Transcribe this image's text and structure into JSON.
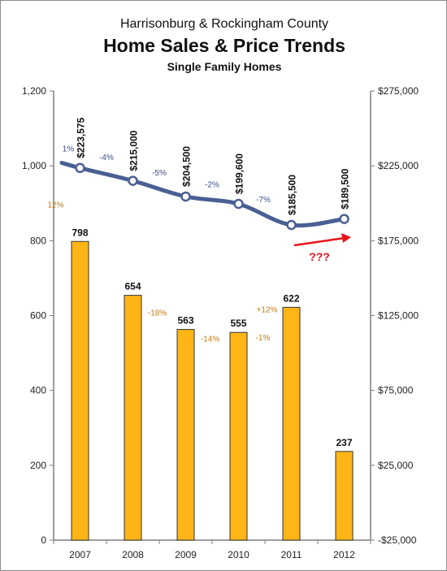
{
  "header": {
    "supertitle": "Harrisonburg & Rockingham County",
    "title": "Home Sales & Price Trends",
    "subtitle": "Single Family Homes"
  },
  "chart_data": {
    "type": "bar",
    "categories": [
      "2007",
      "2008",
      "2009",
      "2010",
      "2011",
      "2012"
    ],
    "series": [
      {
        "axis": "left",
        "type": "bar",
        "color": "#FFB515",
        "values": [
          798,
          654,
          563,
          555,
          622,
          237
        ],
        "value_labels": [
          "798",
          "654",
          "563",
          "555",
          "622",
          "237"
        ],
        "change_labels": [
          "12%",
          "-18%",
          "-14%",
          "-1%",
          "+12%"
        ],
        "change_color": "#C07A10"
      },
      {
        "axis": "right",
        "type": "line",
        "color": "#4A5F93",
        "values": [
          223575,
          215000,
          204500,
          199600,
          185500,
          189500
        ],
        "value_labels": [
          "$223,575",
          "$215,000",
          "$204,500",
          "$199,600",
          "$185,500",
          "$189,500"
        ],
        "change_labels": [
          "1%",
          "-4%",
          "-5%",
          "-2%",
          "-7%"
        ],
        "change_color": "#3B4F86"
      }
    ],
    "y_left": {
      "min": 0,
      "max": 1200,
      "ticks": [
        0,
        200,
        400,
        600,
        800,
        1000,
        1200
      ],
      "tick_labels": [
        "0",
        "200",
        "400",
        "600",
        "800",
        "1,000",
        "1,200"
      ]
    },
    "y_right": {
      "min": -25000,
      "max": 275000,
      "ticks": [
        -25000,
        25000,
        75000,
        125000,
        175000,
        225000,
        275000
      ],
      "tick_labels": [
        "-$25,000",
        "$25,000",
        "$75,000",
        "$125,000",
        "$175,000",
        "$225,000",
        "$275,000"
      ]
    },
    "line_start_value": 227000,
    "annotation": {
      "text": "???",
      "color": "#E8121A"
    },
    "grid": false,
    "legend": "none"
  }
}
